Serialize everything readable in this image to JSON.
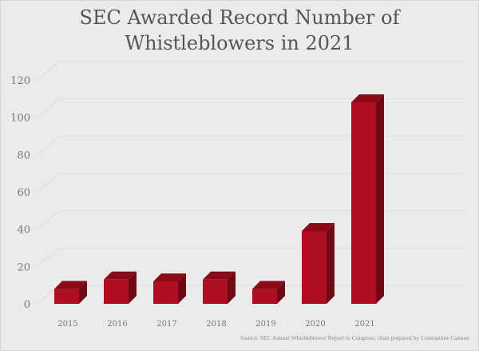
{
  "chart_data": {
    "type": "bar",
    "title_lines": [
      "SEC Awarded Record Number of",
      "Whistleblowers in 2021"
    ],
    "categories": [
      "2015",
      "2016",
      "2017",
      "2018",
      "2019",
      "2020",
      "2021"
    ],
    "values": [
      8,
      13,
      12,
      13,
      8,
      39,
      108
    ],
    "xlabel": "",
    "ylabel": "",
    "ylim": [
      0,
      120
    ],
    "yticks": [
      0,
      20,
      40,
      60,
      80,
      100,
      120
    ],
    "grid": true,
    "style": "3d-column",
    "colors": {
      "front": "#ad0f21",
      "top": "#8a0a1a",
      "side": "#710815",
      "grid": "#dcdcdc",
      "text": "#777777"
    },
    "source": "Source: SEC Annual Whistleblower Report to Congress; chart prepared by Constantine Cannon"
  }
}
